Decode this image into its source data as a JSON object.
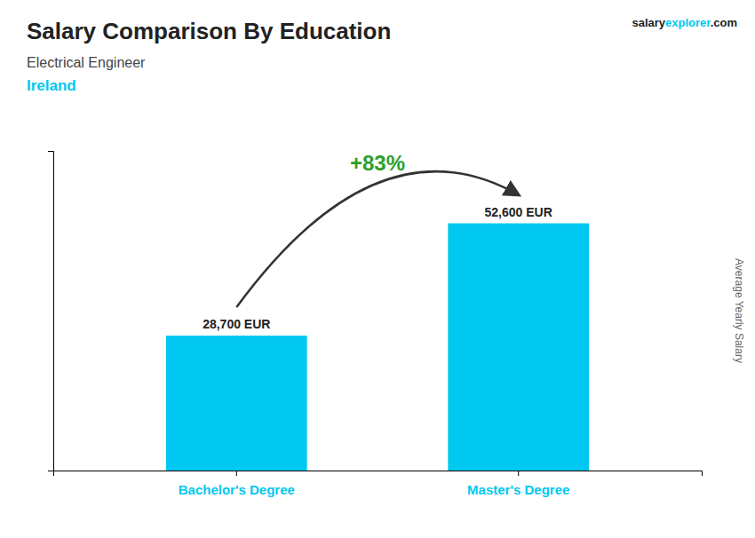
{
  "chart_data": {
    "type": "bar",
    "title": "Salary Comparison By Education",
    "subtitle": [
      "Electrical Engineer",
      "Ireland"
    ],
    "categories": [
      "Bachelor's Degree",
      "Master's Degree"
    ],
    "values": [
      28700,
      52600
    ],
    "value_labels": [
      "28,700 EUR",
      "52,600 EUR"
    ],
    "data_labels": true,
    "color": "#00C8F0",
    "ylabel": "Average Yearly Salary",
    "ylim": [
      0,
      68000
    ],
    "tick_labels": "x",
    "grid": false,
    "annotations": [
      "+83%",
      "salary",
      "explorer",
      ".com"
    ]
  }
}
